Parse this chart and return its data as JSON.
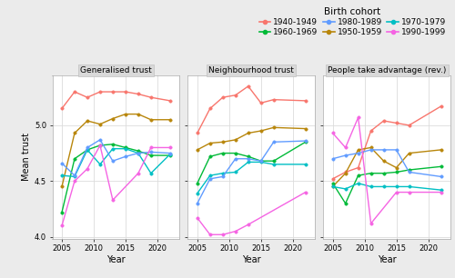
{
  "cohorts": [
    "1940-1949",
    "1950-1959",
    "1960-1969",
    "1970-1979",
    "1980-1989",
    "1990-1999"
  ],
  "colors": {
    "1940-1949": "#F8766D",
    "1950-1959": "#B8860B",
    "1960-1969": "#00BA38",
    "1970-1979": "#00BFC4",
    "1980-1989": "#619CFF",
    "1990-1999": "#F564E3"
  },
  "panels": {
    "Generalised trust": {
      "years": [
        2005,
        2007,
        2009,
        2011,
        2013,
        2015,
        2017,
        2019,
        2022
      ],
      "1940-1949": [
        5.15,
        5.3,
        5.25,
        5.3,
        5.3,
        5.3,
        5.28,
        5.25,
        5.22
      ],
      "1950-1959": [
        4.45,
        4.93,
        5.04,
        5.01,
        5.06,
        5.1,
        5.1,
        5.05,
        5.05
      ],
      "1960-1969": [
        4.22,
        4.7,
        4.78,
        4.82,
        4.83,
        4.8,
        4.77,
        4.73,
        4.73
      ],
      "1970-1979": [
        4.55,
        4.54,
        4.78,
        4.65,
        4.79,
        4.79,
        4.75,
        4.57,
        4.74
      ],
      "1980-1989": [
        4.66,
        4.55,
        4.8,
        4.87,
        4.68,
        4.72,
        4.75,
        4.76,
        4.75
      ],
      "1990-1999": [
        4.1,
        4.5,
        4.61,
        4.82,
        4.33,
        null,
        4.57,
        4.8,
        4.8
      ]
    },
    "Neighbourhood trust": {
      "years": [
        2005,
        2007,
        2009,
        2011,
        2013,
        2015,
        2017,
        2019,
        2022
      ],
      "1940-1949": [
        4.93,
        5.15,
        5.25,
        5.27,
        5.35,
        5.2,
        5.23,
        null,
        5.22
      ],
      "1950-1959": [
        4.78,
        4.84,
        4.85,
        4.87,
        4.93,
        4.95,
        4.98,
        null,
        4.97
      ],
      "1960-1969": [
        4.48,
        4.72,
        4.75,
        4.75,
        4.72,
        4.68,
        4.68,
        null,
        4.85
      ],
      "1970-1979": [
        4.39,
        4.55,
        4.57,
        4.58,
        4.67,
        4.67,
        4.65,
        null,
        4.65
      ],
      "1980-1989": [
        4.3,
        4.52,
        4.54,
        4.7,
        4.7,
        4.68,
        4.85,
        null,
        4.86
      ],
      "1990-1999": [
        4.17,
        4.02,
        4.02,
        4.05,
        4.11,
        null,
        null,
        null,
        4.4
      ]
    },
    "People take advantage (rev.)": {
      "years": [
        2005,
        2007,
        2009,
        2011,
        2013,
        2015,
        2017,
        2019,
        2022
      ],
      "1940-1949": [
        4.52,
        4.58,
        4.62,
        4.95,
        5.04,
        5.02,
        5.0,
        null,
        5.17
      ],
      "1950-1959": [
        4.45,
        4.57,
        4.78,
        4.8,
        4.68,
        4.62,
        4.75,
        null,
        4.78
      ],
      "1960-1969": [
        4.48,
        4.3,
        4.55,
        4.57,
        4.57,
        4.58,
        4.6,
        null,
        4.63
      ],
      "1970-1979": [
        4.45,
        4.43,
        4.48,
        4.45,
        4.45,
        4.45,
        4.45,
        null,
        4.42
      ],
      "1980-1989": [
        4.7,
        4.73,
        4.75,
        4.78,
        4.78,
        4.78,
        4.58,
        null,
        4.54
      ],
      "1990-1999": [
        4.93,
        4.8,
        5.07,
        4.12,
        null,
        4.4,
        4.4,
        null,
        4.4
      ]
    }
  },
  "ylim": [
    3.98,
    5.45
  ],
  "yticks": [
    4.0,
    4.5,
    5.0
  ],
  "xticks": [
    2005,
    2010,
    2015,
    2020
  ],
  "xlabel": "Year",
  "ylabel": "Mean trust",
  "legend_title": "Birth cohort",
  "bg_color": "#EBEBEB",
  "panel_bg": "#FFFFFF",
  "grid_color": "#DCDCDC",
  "facet_bg": "#D9D9D9",
  "facet_border": "#C0C0C0",
  "panel_titles": [
    "Generalised trust",
    "Neighbourhood trust",
    "People take advantage (rev.)"
  ]
}
